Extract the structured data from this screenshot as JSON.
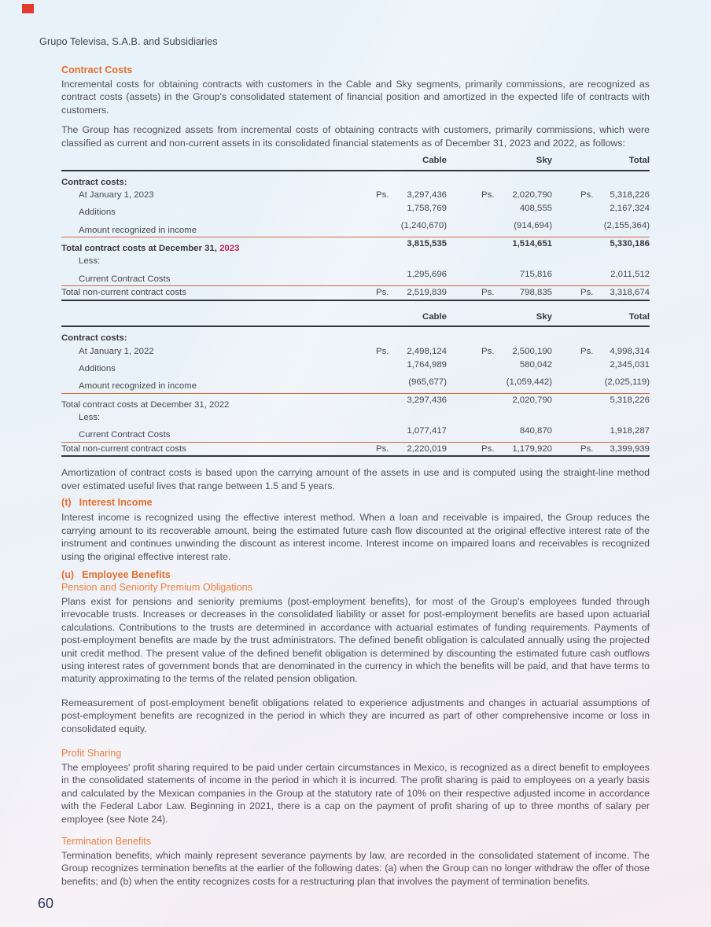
{
  "page": {
    "company": "Grupo Televisa, S.A.B. and Subsidiaries",
    "page_number": "60",
    "accent_orange": "#e7702e",
    "accent_crimson": "#c02457",
    "corner_mark_color": "#e23b2e"
  },
  "contract_costs": {
    "heading": "Contract Costs",
    "para1": "Incremental costs for obtaining contracts with customers in the Cable and Sky segments, primarily commissions, are recognized as contract costs (assets) in the Group's consolidated statement of financial position and amortized in the expected life of contracts with customers.",
    "para2": "The Group has recognized assets from incremental costs of obtaining contracts with customers, primarily commissions, which were classified as current and non-current assets in its consolidated financial statements as of December 31, 2023 and 2022, as follows:"
  },
  "tables": [
    {
      "columns": [
        "Cable",
        "Sky",
        "Total"
      ],
      "rows": [
        {
          "label": "Contract costs:"
        },
        {
          "label": "At January 1, 2023",
          "ps1": "Ps.",
          "cable": "3,297,436",
          "ps2": "Ps.",
          "sky": "2,020,790",
          "ps3": "Ps.",
          "total": "5,318,226"
        },
        {
          "label": "Additions",
          "cable": "1,758,769",
          "sky": "408,555",
          "total": "2,167,324"
        },
        {
          "label": "Amount recognized in income",
          "cable": "(1,240,670)",
          "sky": "(914,694)",
          "total": "(2,155,364)"
        },
        {
          "label": "Total contract costs at December 31, ",
          "year": "2023",
          "cable": "3,815,535",
          "sky": "1,514,651",
          "total": "5,330,186"
        },
        {
          "label": "Less:"
        },
        {
          "label": "Current Contract Costs",
          "cable": "1,295,696",
          "sky": "715,816",
          "total": "2,011,512"
        },
        {
          "label": "Total non-current contract costs",
          "ps1": "Ps.",
          "cable": "2,519,839",
          "ps2": "Ps.",
          "sky": "798,835",
          "ps3": "Ps.",
          "total": "3,318,674"
        }
      ]
    },
    {
      "columns": [
        "Cable",
        "Sky",
        "Total"
      ],
      "rows": [
        {
          "label": "Contract costs:"
        },
        {
          "label": "At January 1, 2022",
          "ps1": "Ps.",
          "cable": "2,498,124",
          "ps2": "Ps.",
          "sky": "2,500,190",
          "ps3": "Ps.",
          "total": "4,998,314"
        },
        {
          "label": "Additions",
          "cable": "1,764,989",
          "sky": "580,042",
          "total": "2,345,031"
        },
        {
          "label": "Amount recognized in income",
          "cable": "(965,677)",
          "sky": "(1,059,442)",
          "total": "(2,025,119)"
        },
        {
          "label": "Total contract costs at December 31, 2022",
          "cable": "3,297,436",
          "sky": "2,020,790",
          "total": "5,318,226"
        },
        {
          "label": "Less:"
        },
        {
          "label": "Current Contract Costs",
          "cable": "1,077,417",
          "sky": "840,870",
          "total": "1,918,287"
        },
        {
          "label": "Total non-current contract costs",
          "ps1": "Ps.",
          "cable": "2,220,019",
          "ps2": "Ps.",
          "sky": "1,179,920",
          "ps3": "Ps.",
          "total": "3,399,939"
        }
      ]
    }
  ],
  "amortization_para": "Amortization of contract costs is based upon the carrying amount of the assets in use and is computed using the straight-line method over estimated useful lives that range between 1.5 and 5 years.",
  "interest_income": {
    "prefix": "(t)",
    "title": "Interest Income",
    "body": "Interest income is recognized using the effective interest method. When a loan and receivable is impaired, the Group reduces the carrying amount to its recoverable amount, being the estimated future cash flow discounted at the original effective interest rate of the instrument and continues unwinding the discount as interest income. Interest income on impaired loans and receivables is recognized using the original effective interest rate.",
    "_": ""
  },
  "employee_benefits": {
    "prefix": "(u)",
    "title": "Employee Benefits",
    "pension_subheading": "Pension and Seniority Premium Obligations",
    "pension_body": "Plans exist for pensions and seniority premiums (post-employment benefits), for most of the Group's employees funded through irrevocable trusts. Increases or decreases in the consolidated liability or asset for post-employment benefits are based upon actuarial calculations. Contributions to the trusts are determined in accordance with actuarial estimates of funding requirements. Payments of post-employment benefits are made by the trust administrators. The defined benefit obligation is calculated annually using the projected unit credit method. The present value of the defined benefit obligation is determined by discounting the estimated future cash outflows using interest rates of government bonds that are denominated in the currency in which the benefits will be paid, and that have terms to maturity approximating to the terms of the related pension obligation.",
    "remeasurement_body": "Remeasurement of post-employment benefit obligations related to experience adjustments and changes in actuarial assumptions of post-employment benefits are recognized in the period in which they are incurred as part of other comprehensive income or loss in consolidated equity.",
    "profit_sharing_subheading": "Profit Sharing",
    "profit_sharing_body": "The employees' profit sharing required to be paid under certain circumstances in Mexico, is recognized as a direct benefit to employees in the consolidated statements of income in the period in which it is incurred. The profit sharing is paid to employees on a yearly basis and calculated by the Mexican companies in the Group at the statutory rate of 10% on their respective adjusted income in accordance with the Federal Labor Law. Beginning in 2021, there is a cap on the payment of profit sharing of up to three months of salary per employee (see Note 24).",
    "termination_subheading": "Termination Benefits",
    "termination_body": "Termination benefits, which mainly represent severance payments by law, are recorded in the consolidated statement of income. The Group recognizes termination benefits at the earlier of the following dates: (a) when the Group can no longer withdraw the offer of those benefits; and (b) when the entity recognizes costs for a restructuring plan that involves the payment of termination benefits."
  }
}
